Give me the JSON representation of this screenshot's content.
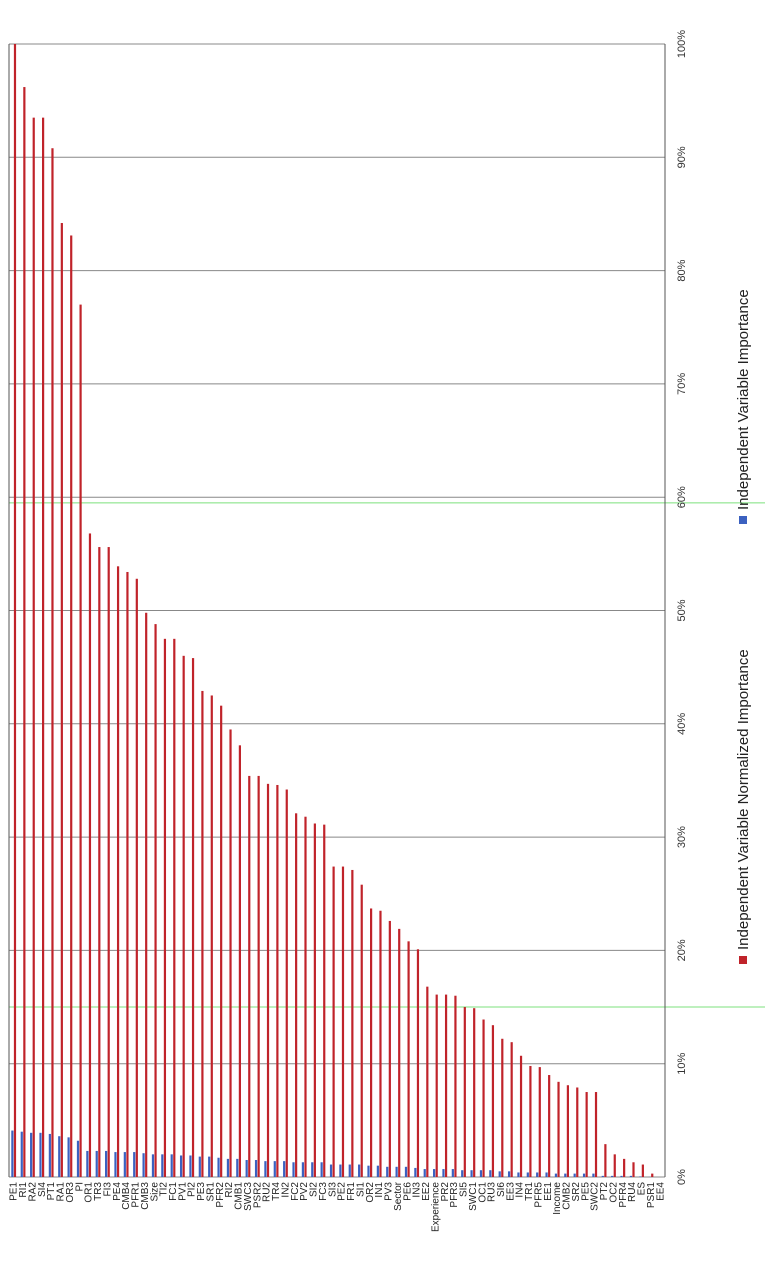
{
  "chart_data": {
    "type": "bar",
    "orientation": "rotated-90-clockwise",
    "categories": [
      "PE1",
      "RI1",
      "RA2",
      "SI4",
      "PT1",
      "RA1",
      "OR3",
      "PI",
      "OR1",
      "TR3",
      "FI3",
      "PE4",
      "CMB4",
      "PFR1",
      "CMB3",
      "Size",
      "TI2",
      "FC1",
      "PV1",
      "PI2",
      "PE3",
      "SR1",
      "PFR2",
      "RI2",
      "CMB1",
      "SWC3",
      "PSR2",
      "RU2",
      "TR4",
      "IN2",
      "FC2",
      "PV2",
      "SI2",
      "FC3",
      "SI3",
      "PE2",
      "FR1",
      "SI1",
      "OR2",
      "IN1",
      "PV3",
      "Sector",
      "PE6",
      "IN3",
      "EE2",
      "Experience",
      "PR2",
      "PFR3",
      "SI5",
      "SWC1",
      "OC1",
      "RU3",
      "SI6",
      "EE3",
      "IN4",
      "TR1",
      "PFR5",
      "EE1",
      "Income",
      "CMB2",
      "SR2",
      "PE5",
      "SWC2",
      "PT2",
      "OC2",
      "PFR4",
      "RU4",
      "ES",
      "PSR1",
      "EE4"
    ],
    "series": [
      {
        "name": "Independent Variable Normalized Importance",
        "color": "#C0232A",
        "values": [
          100,
          96.2,
          93.5,
          93.5,
          90.8,
          84.2,
          83.1,
          77,
          56.8,
          55.6,
          55.6,
          53.9,
          53.4,
          52.8,
          49.8,
          48.8,
          47.5,
          47.5,
          46,
          45.8,
          42.9,
          42.5,
          41.6,
          39.5,
          38.1,
          35.4,
          35.4,
          34.7,
          34.6,
          34.2,
          32.1,
          31.8,
          31.2,
          31.1,
          27.4,
          27.4,
          27.1,
          25.8,
          23.7,
          23.5,
          22.6,
          21.9,
          20.8,
          20.1,
          16.8,
          16.1,
          16.1,
          16,
          15,
          14.9,
          13.9,
          13.4,
          12.2,
          11.9,
          10.7,
          9.8,
          9.7,
          9,
          8.4,
          8.1,
          7.9,
          7.5,
          7.5,
          2.9,
          2,
          1.6,
          1.3,
          1.1,
          0.3,
          0
        ],
        "unit": "%"
      },
      {
        "name": "Independent Variable Importance",
        "color": "#3B61C0",
        "values": [
          4.1,
          4,
          3.9,
          3.9,
          3.8,
          3.6,
          3.5,
          3.2,
          2.3,
          2.3,
          2.3,
          2.2,
          2.2,
          2.2,
          2.1,
          2,
          2,
          2,
          1.9,
          1.9,
          1.8,
          1.8,
          1.7,
          1.6,
          1.6,
          1.5,
          1.5,
          1.4,
          1.4,
          1.4,
          1.3,
          1.3,
          1.3,
          1.3,
          1.1,
          1.1,
          1.1,
          1.1,
          1,
          1,
          0.9,
          0.9,
          0.9,
          0.8,
          0.7,
          0.7,
          0.7,
          0.7,
          0.6,
          0.6,
          0.6,
          0.6,
          0.5,
          0.5,
          0.4,
          0.4,
          0.4,
          0.4,
          0.3,
          0.3,
          0.3,
          0.3,
          0.3,
          0.1,
          0.1,
          0.1,
          0.1,
          0.05,
          0.01,
          0
        ],
        "unit": "%"
      }
    ],
    "axis": {
      "ylim": [
        0,
        100
      ],
      "ticks": [
        "0%",
        "10%",
        "20%",
        "30%",
        "40%",
        "50%",
        "60%",
        "70%",
        "80%",
        "90%",
        "100%"
      ],
      "grid": true
    },
    "legend": {
      "placement": "right",
      "entries": [
        "Independent Variable Normalized Importance",
        "Independent Variable Importance"
      ]
    },
    "colors": {
      "gridline": "#888888",
      "highlight_line": "#7CE07C",
      "axis": "#555555"
    }
  }
}
